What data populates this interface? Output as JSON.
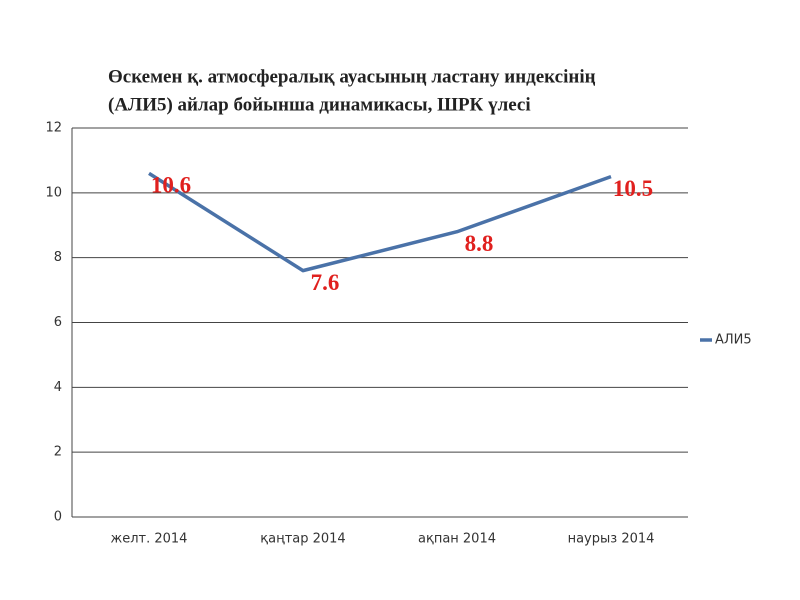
{
  "chart_data": {
    "type": "line",
    "title": [
      "Өскемен  қ. атмосфералық ауасының  ластану индексінің",
      "(АЛИ5) айлар бойынша  динамикасы, ШРК үлесі"
    ],
    "categories": [
      "желт. 2014",
      "қаңтар 2014",
      "ақпан 2014",
      "наурыз 2014"
    ],
    "series": [
      {
        "name": "АЛИ5",
        "color": "#4a72a8",
        "values": [
          10.6,
          7.6,
          8.8,
          10.5
        ]
      }
    ],
    "ylim": [
      0,
      12
    ],
    "yticks": [
      0,
      2,
      4,
      6,
      8,
      10,
      12
    ],
    "grid": true,
    "legend": "right"
  }
}
